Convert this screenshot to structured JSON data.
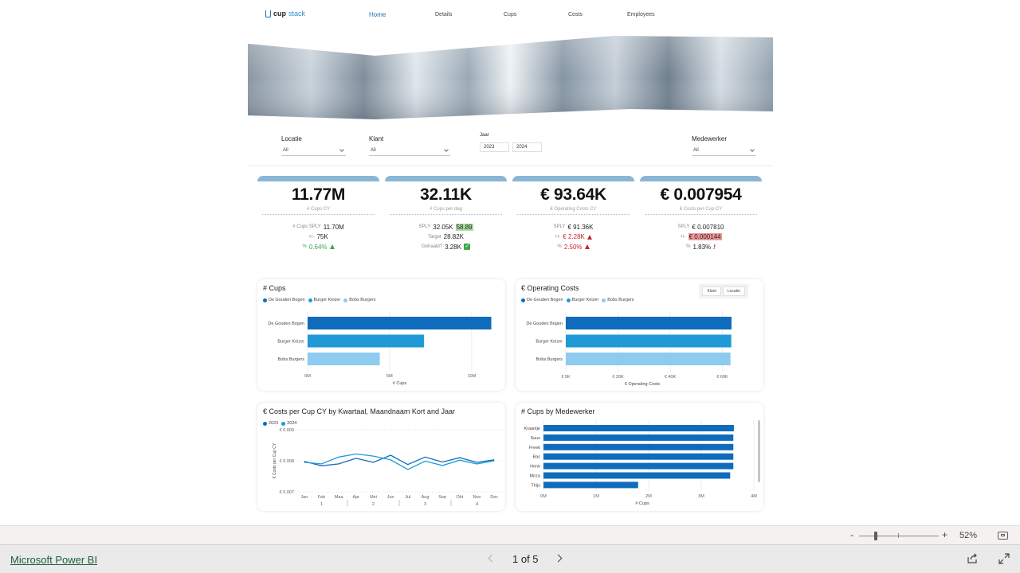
{
  "brand": {
    "name": "cup",
    "name_suffix": "stack"
  },
  "nav": [
    {
      "label": "Home",
      "active": true
    },
    {
      "label": "Details"
    },
    {
      "label": "Cups"
    },
    {
      "label": "Costs"
    },
    {
      "label": "Employees"
    }
  ],
  "filters": {
    "locatie": {
      "label": "Locatie",
      "value": "All"
    },
    "klant": {
      "label": "Klant",
      "value": "All"
    },
    "jaar": {
      "label": "Jaar",
      "from": "2023",
      "to": "2024"
    },
    "medewerker": {
      "label": "Medewerker",
      "value": "All"
    }
  },
  "kpis": [
    {
      "value": "11.77M",
      "label": "# Cups CY",
      "rows": [
        {
          "label": "# Cups SPLY",
          "value": "11.70M"
        },
        {
          "label": "+/-",
          "value": "75K"
        },
        {
          "label": "%",
          "value": "0.64%",
          "status": "up-green"
        }
      ]
    },
    {
      "value": "32.11K",
      "label": "# Cups per dag",
      "rows": [
        {
          "label": "SPLY",
          "value": "32.05K",
          "extra": "58.89"
        },
        {
          "label": "Target",
          "value": "28.82K"
        },
        {
          "label": "Gehaald?",
          "value": "3.28K",
          "status": "check"
        }
      ]
    },
    {
      "value": "€ 93.64K",
      "label": "€ Operating Costs CY",
      "rows": [
        {
          "label": "SPLY",
          "value": "€ 91.36K"
        },
        {
          "label": "+/-",
          "value": "€ 2.28K",
          "status": "up-red"
        },
        {
          "label": "%",
          "value": "2.50%",
          "status": "up-red"
        }
      ]
    },
    {
      "value": "€ 0.007954",
      "label": "€ Costs per Cup CY",
      "rows": [
        {
          "label": "SPLY",
          "value": "€ 0.007810"
        },
        {
          "label": "+/-",
          "value": "€ 0.000144",
          "status": "hl-red"
        },
        {
          "label": "%",
          "value": "1.83%",
          "status": "excl"
        }
      ]
    }
  ],
  "segment_buttons": [
    "Klant",
    "Locatie"
  ],
  "colors": {
    "dark": "#0f6cbd",
    "mid": "#1f9ad6",
    "light": "#8dcbf0",
    "kpi_cap": "#8ab6d6"
  },
  "chart_data": [
    {
      "type": "bar",
      "title": "# Cups",
      "legend": [
        "De Gouden Bogen",
        "Burger Keizer",
        "Bobs Burgers"
      ],
      "categories": [
        "De Gouden Bogen",
        "Burger Keizer",
        "Bobs Burgers"
      ],
      "values": [
        11.2,
        7.1,
        4.4
      ],
      "unit_suffix": "M",
      "xlim": [
        0,
        12
      ],
      "ticks": [
        "0M",
        "5M",
        "10M"
      ],
      "tick_values": [
        0,
        5,
        10
      ],
      "xlabel": "# Cups"
    },
    {
      "type": "bar",
      "title": "€ Operating Costs",
      "legend": [
        "De Gouden Bogen",
        "Burger Keizer",
        "Bobs Burgers"
      ],
      "categories": [
        "De Gouden Bogen",
        "Burger Keizer",
        "Bobs Burgers"
      ],
      "values": [
        63.5,
        63.4,
        63.1
      ],
      "xlim": [
        0,
        63.5
      ],
      "ticks": [
        "€ 0K",
        "€ 20K",
        "€ 40K",
        "€ 60K"
      ],
      "tick_values": [
        0,
        20,
        40,
        60
      ],
      "xlabel": "€ Operating Costs"
    },
    {
      "type": "line",
      "title": "€ Costs per Cup CY by Kwartaal, Maandnaam Kort and Jaar",
      "legend": [
        "2023",
        "2024"
      ],
      "categories": [
        "Jan",
        "Feb",
        "Maa",
        "Apr",
        "Mei",
        "Jun",
        "Jul",
        "Aug",
        "Sep",
        "Okt",
        "Nov",
        "Dec"
      ],
      "quarters": [
        "1",
        "2",
        "3",
        "4"
      ],
      "series": [
        {
          "name": "2023",
          "values": [
            0.00798,
            0.00784,
            0.0079,
            0.00808,
            0.00795,
            0.00818,
            0.00788,
            0.00812,
            0.00796,
            0.0081,
            0.00795,
            0.00803
          ]
        },
        {
          "name": "2024",
          "values": [
            0.00795,
            0.0079,
            0.00812,
            0.00822,
            0.00815,
            0.00803,
            0.00772,
            0.00799,
            0.00785,
            0.00802,
            0.0079,
            0.008
          ]
        }
      ],
      "ylim": [
        0.0069,
        0.0091
      ],
      "yticks": [
        "€ 0.009",
        "€ 0.008",
        "€ 0.007"
      ],
      "ytick_values": [
        0.009,
        0.008,
        0.007
      ],
      "ylabel": "€ Costs per Cup CY"
    },
    {
      "type": "bar",
      "title": "# Cups by Medewerker",
      "categories": [
        "Kraantje",
        "Suus",
        "Freek",
        "Bas",
        "Henk",
        "Mirza",
        "Thijs"
      ],
      "values": [
        3.62,
        3.61,
        3.61,
        3.61,
        3.61,
        3.55,
        1.8
      ],
      "xlim": [
        0,
        4
      ],
      "ticks": [
        "0M",
        "1M",
        "2M",
        "3M",
        "4M"
      ],
      "tick_values": [
        0,
        1,
        2,
        3,
        4
      ],
      "xlabel": "# Cups"
    }
  ],
  "zoom": {
    "percent": "52%",
    "minus": "-",
    "plus": "+",
    "level": 0.21
  },
  "footer": {
    "brand": "Microsoft Power BI",
    "page": "1 of 5"
  }
}
